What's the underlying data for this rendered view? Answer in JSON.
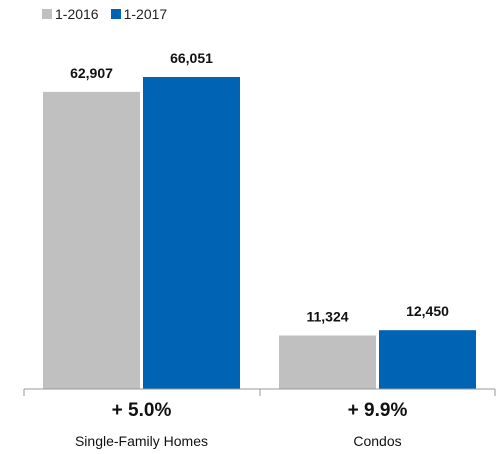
{
  "chart_data": {
    "type": "bar",
    "categories": [
      "Single-Family Homes",
      "Condos"
    ],
    "series": [
      {
        "name": "1-2016",
        "color": "#c0c0c0",
        "values": [
          62907,
          11324
        ]
      },
      {
        "name": "1-2017",
        "color": "#0063b4",
        "values": [
          66051,
          12450
        ]
      }
    ],
    "value_labels": [
      [
        "62,907",
        "11,324"
      ],
      [
        "66,051",
        "12,450"
      ]
    ],
    "changes": [
      "+ 5.0%",
      "+ 9.9%"
    ],
    "ylim": [
      0,
      75000
    ],
    "grid": false,
    "legend_position": "top-left"
  }
}
